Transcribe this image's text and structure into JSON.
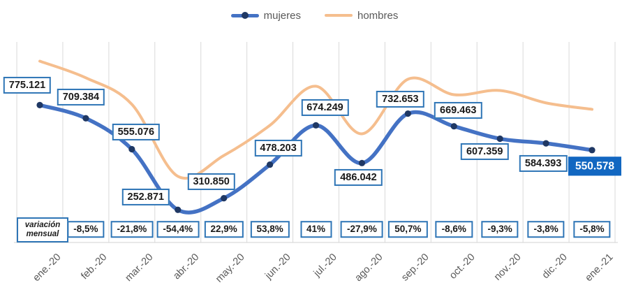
{
  "chart_data": {
    "type": "line",
    "title": "",
    "x": [
      "ene.-20",
      "feb.-20",
      "mar.-20",
      "abr.-20",
      "may.-20",
      "jun.-20",
      "jul.-20",
      "ago.-20",
      "sep.-20",
      "oct.-20",
      "nov.-20",
      "dic.-20",
      "ene.-21"
    ],
    "series": [
      {
        "name": "mujeres",
        "values": [
          775121,
          709384,
          555076,
          252871,
          310850,
          478203,
          674249,
          486042,
          732653,
          669463,
          607359,
          584393,
          550578
        ],
        "data_labels": [
          "775.121",
          "709.384",
          "555.076",
          "252.871",
          "310.850",
          "478.203",
          "674.249",
          "486.042",
          "732.653",
          "669.463",
          "607.359",
          "584.393",
          "550.578"
        ],
        "highlight_last": true,
        "line_color": "#4472C4",
        "marker_color": "#1F3864"
      },
      {
        "name": "hombres",
        "values_estimated": [
          994000,
          911000,
          779000,
          420000,
          524000,
          674000,
          869000,
          632000,
          904000,
          827000,
          848000,
          786000,
          754000
        ],
        "line_color": "#F5BE8E"
      }
    ],
    "monthly_variation": {
      "label": "variación mensual",
      "applies_to_months": [
        "feb.-20",
        "mar.-20",
        "abr.-20",
        "may.-20",
        "jun.-20",
        "jul.-20",
        "ago.-20",
        "sep.-20",
        "oct.-20",
        "nov.-20",
        "dic.-20",
        "ene.-21"
      ],
      "values": [
        "-8,5%",
        "-21,8%",
        "-54,4%",
        "22,9%",
        "53,8%",
        "41%",
        "-27,9%",
        "50,7%",
        "-8,6%",
        "-9,3%",
        "-3,8%",
        "-5,8%"
      ]
    },
    "ylim": [
      90000,
      1090000
    ],
    "grid": "vertical-only",
    "legend_position": "top-center",
    "colors": {
      "grid": "#D9D9D9",
      "axis_line": "#D9D9D9",
      "axis_text": "#595959",
      "label_border": "#2E75B6",
      "highlight_fill": "#1267C1"
    }
  }
}
